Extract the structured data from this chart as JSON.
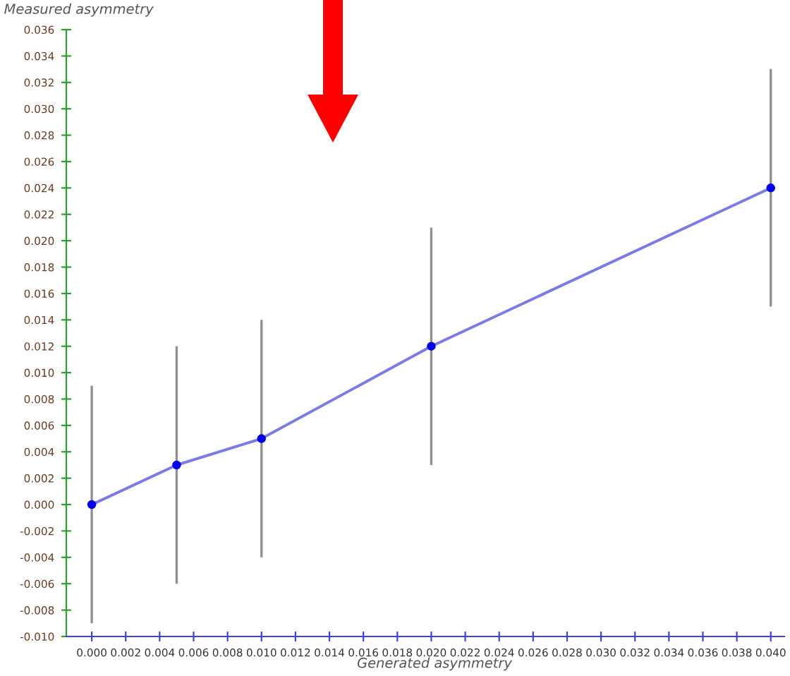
{
  "chart_data": {
    "type": "line",
    "xlabel": "Generated asymmetry",
    "ylabel": "Measured asymmetry",
    "x": [
      0.0,
      0.005,
      0.01,
      0.02,
      0.04
    ],
    "series": [
      {
        "color": "#7b7be8",
        "values": [
          0.0,
          0.003,
          0.005,
          0.012,
          0.024
        ],
        "errors": [
          0.009,
          [
            -0.006,
            0.012
          ],
          [
            -0.004,
            0.014
          ],
          [
            0.003,
            0.021
          ],
          [
            0.015,
            0.033
          ]
        ]
      }
    ],
    "marker": "circle",
    "line_style": "solid",
    "grid": false,
    "legend": false,
    "xlim": [
      -0.0015,
      0.0408
    ],
    "ylim": [
      -0.01,
      0.036
    ],
    "xticks": [
      {
        "value": 0.0,
        "label": "0.000"
      },
      {
        "value": 0.002,
        "label": "0.002"
      },
      {
        "value": 0.004,
        "label": "0.004"
      },
      {
        "value": 0.006,
        "label": "0.006"
      },
      {
        "value": 0.008,
        "label": "0.008"
      },
      {
        "value": 0.01,
        "label": "0.010"
      },
      {
        "value": 0.012,
        "label": "0.012"
      },
      {
        "value": 0.014,
        "label": "0.014"
      },
      {
        "value": 0.016,
        "label": "0.016"
      },
      {
        "value": 0.018,
        "label": "0.018"
      },
      {
        "value": 0.02,
        "label": "0.020"
      },
      {
        "value": 0.022,
        "label": "0.022"
      },
      {
        "value": 0.024,
        "label": "0.024"
      },
      {
        "value": 0.026,
        "label": "0.026"
      },
      {
        "value": 0.028,
        "label": "0.028"
      },
      {
        "value": 0.03,
        "label": "0.030"
      },
      {
        "value": 0.032,
        "label": "0.032"
      },
      {
        "value": 0.034,
        "label": "0.034"
      },
      {
        "value": 0.036,
        "label": "0.036"
      },
      {
        "value": 0.038,
        "label": "0.038"
      },
      {
        "value": 0.04,
        "label": "0.040"
      }
    ],
    "yticks": [
      {
        "value": -0.01,
        "label": "-0.010"
      },
      {
        "value": -0.008,
        "label": "-0.008"
      },
      {
        "value": -0.006,
        "label": "-0.006"
      },
      {
        "value": -0.004,
        "label": "-0.004"
      },
      {
        "value": -0.002,
        "label": "-0.002"
      },
      {
        "value": 0.0,
        "label": "0.000"
      },
      {
        "value": 0.002,
        "label": "0.002"
      },
      {
        "value": 0.004,
        "label": "0.004"
      },
      {
        "value": 0.006,
        "label": "0.006"
      },
      {
        "value": 0.008,
        "label": "0.008"
      },
      {
        "value": 0.01,
        "label": "0.010"
      },
      {
        "value": 0.012,
        "label": "0.012"
      },
      {
        "value": 0.014,
        "label": "0.014"
      },
      {
        "value": 0.016,
        "label": "0.016"
      },
      {
        "value": 0.018,
        "label": "0.018"
      },
      {
        "value": 0.02,
        "label": "0.020"
      },
      {
        "value": 0.022,
        "label": "0.022"
      },
      {
        "value": 0.024,
        "label": "0.024"
      },
      {
        "value": 0.026,
        "label": "0.026"
      },
      {
        "value": 0.028,
        "label": "0.028"
      },
      {
        "value": 0.03,
        "label": "0.030"
      },
      {
        "value": 0.032,
        "label": "0.032"
      },
      {
        "value": 0.034,
        "label": "0.034"
      },
      {
        "value": 0.036,
        "label": "0.036"
      }
    ]
  }
}
